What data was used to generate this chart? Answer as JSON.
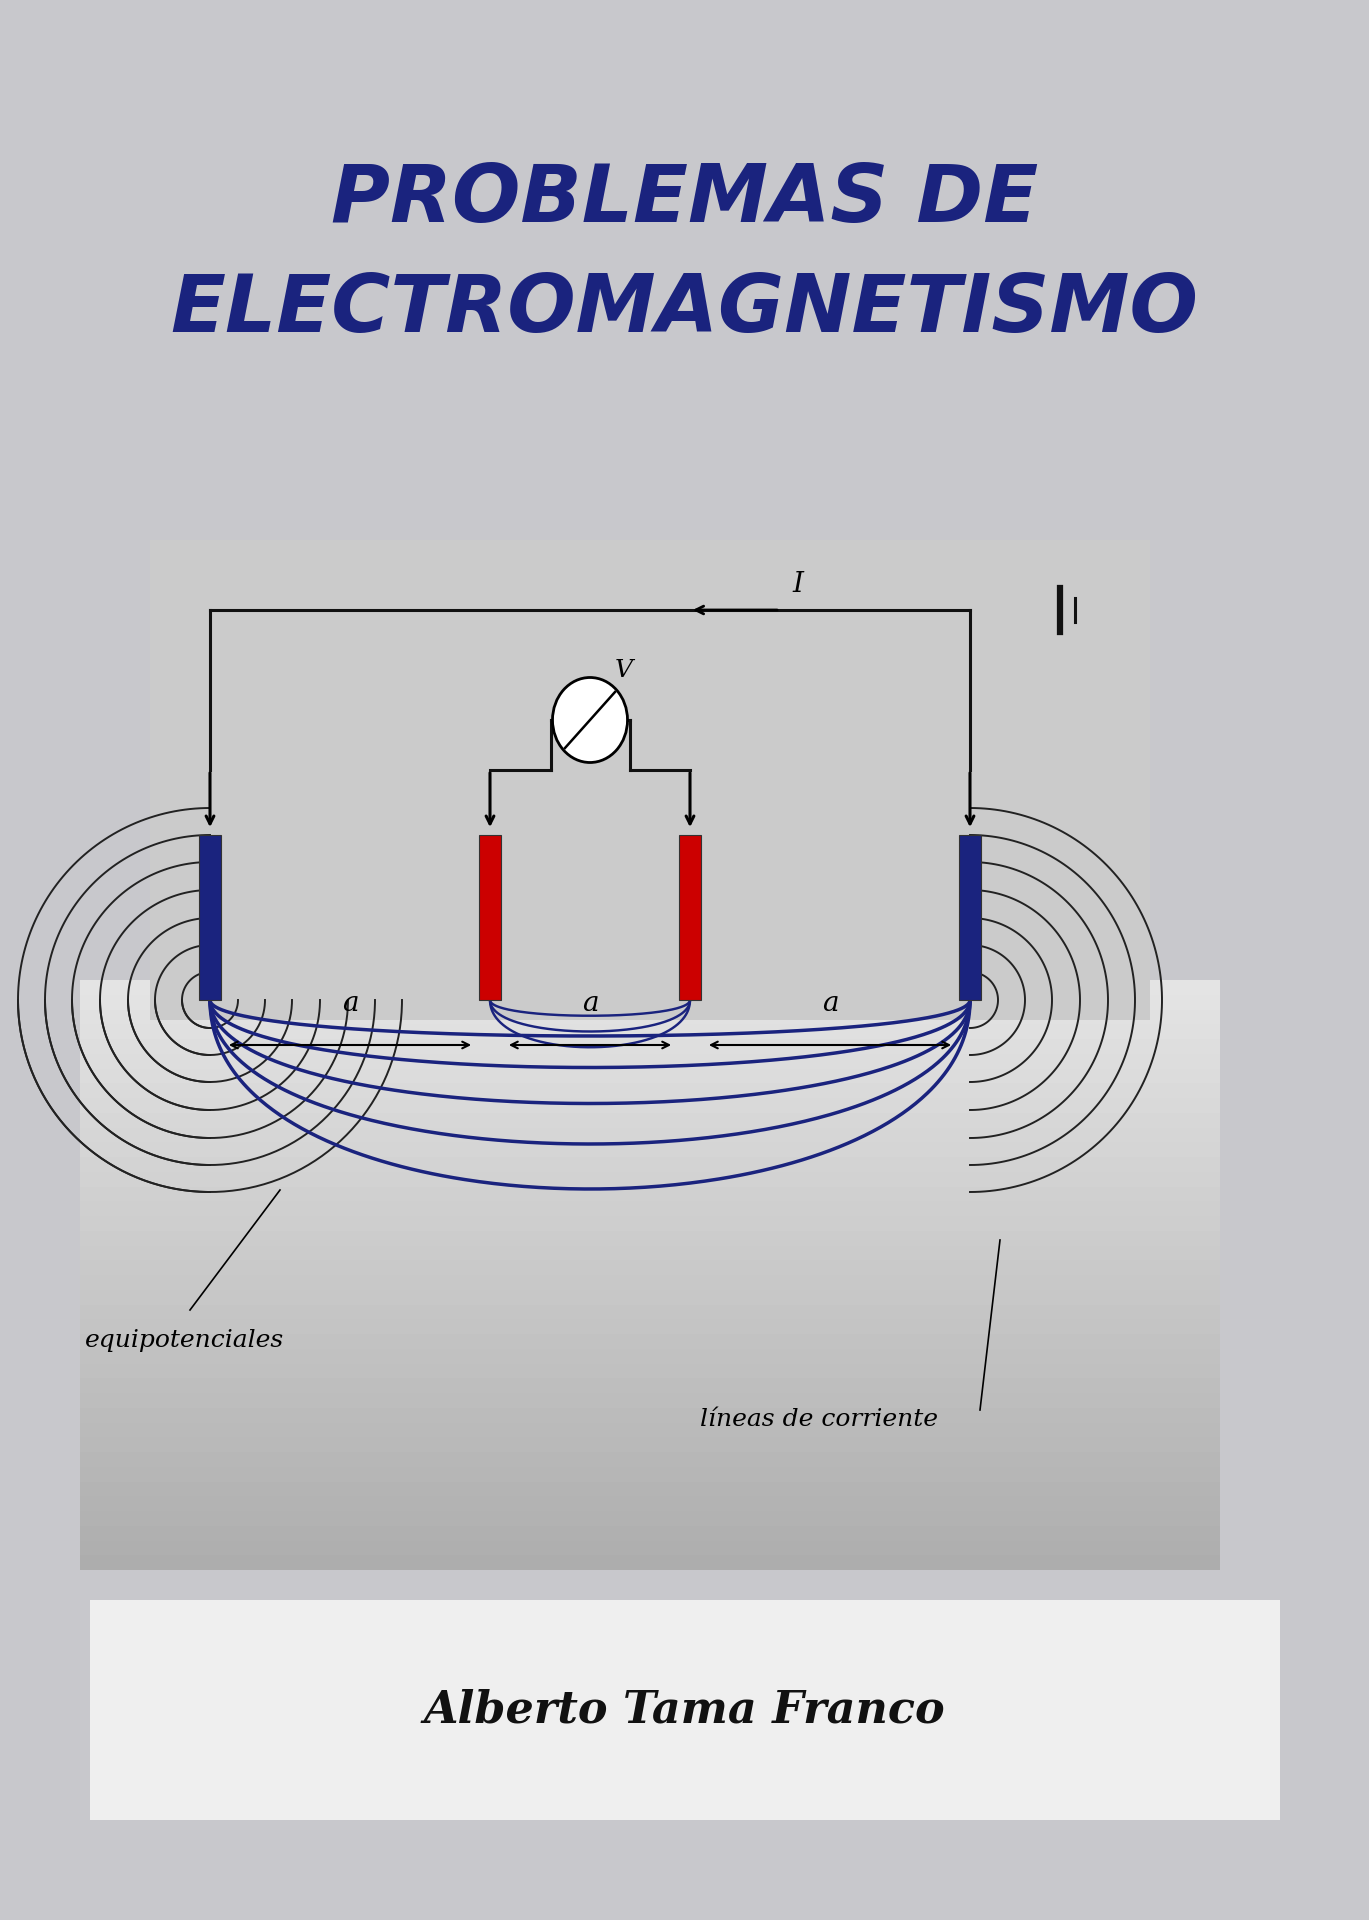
{
  "bg_color": "#c8c8cc",
  "title_line1": "PROBLEMAS DE",
  "title_line2": "ELECTROMAGNETISMO",
  "title_color": "#1a237e",
  "title_fontsize": 58,
  "author": "Alberto Tama Franco",
  "author_fontsize": 32,
  "author_color": "#111111",
  "circuit_bg": "#cbcbcb",
  "field_bg_top": "#b0b0b0",
  "field_bg_bottom": "#e0e0e0",
  "blue_bar_color": "#1a237e",
  "red_bar_color": "#cc0000",
  "wire_color": "#111111",
  "equipotential_color": "#1a237e",
  "field_line_color": "#222222",
  "label_equipotenciales": "equipotenciales",
  "label_lineas": "líneas de corriente",
  "label_I": "I",
  "label_V": "V"
}
